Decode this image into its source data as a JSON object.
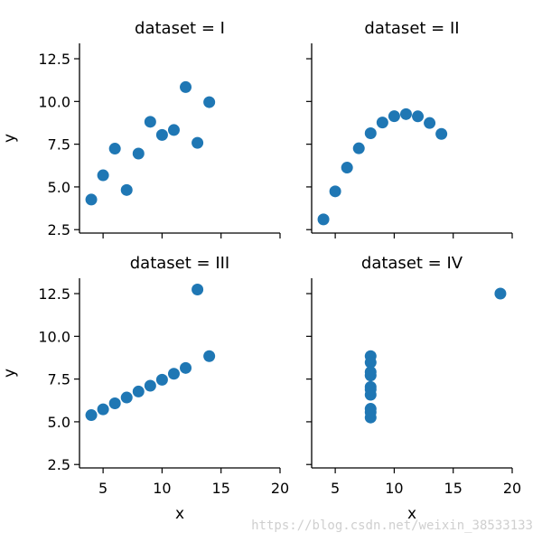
{
  "chart_data": {
    "type": "scatter",
    "facet_by": "dataset",
    "xlabel": "x",
    "ylabel": "y",
    "xlim": [
      3,
      20
    ],
    "ylim": [
      2.3,
      13.4
    ],
    "xticks": [
      5,
      10,
      15,
      20
    ],
    "yticks": [
      2.5,
      5.0,
      7.5,
      10.0,
      12.5
    ],
    "marker_color": "#1f77b4",
    "grid": false,
    "panels": [
      {
        "title": "dataset = I",
        "x": [
          10,
          8,
          13,
          9,
          11,
          14,
          6,
          4,
          12,
          7,
          5
        ],
        "y": [
          8.04,
          6.95,
          7.58,
          8.81,
          8.33,
          9.96,
          7.24,
          4.26,
          10.84,
          4.82,
          5.68
        ]
      },
      {
        "title": "dataset = II",
        "x": [
          10,
          8,
          13,
          9,
          11,
          14,
          6,
          4,
          12,
          7,
          5
        ],
        "y": [
          9.14,
          8.14,
          8.74,
          8.77,
          9.26,
          8.1,
          6.13,
          3.1,
          9.13,
          7.26,
          4.74
        ]
      },
      {
        "title": "dataset = III",
        "x": [
          10,
          8,
          13,
          9,
          11,
          14,
          6,
          4,
          12,
          7,
          5
        ],
        "y": [
          7.46,
          6.77,
          12.74,
          7.11,
          7.81,
          8.84,
          6.08,
          5.39,
          8.15,
          6.42,
          5.73
        ]
      },
      {
        "title": "dataset = IV",
        "x": [
          8,
          8,
          8,
          8,
          8,
          8,
          8,
          19,
          8,
          8,
          8
        ],
        "y": [
          6.58,
          5.76,
          7.71,
          8.84,
          8.47,
          7.04,
          5.25,
          12.5,
          5.56,
          7.91,
          6.89
        ]
      }
    ]
  },
  "watermark": "https://blog.csdn.net/weixin_38533133"
}
